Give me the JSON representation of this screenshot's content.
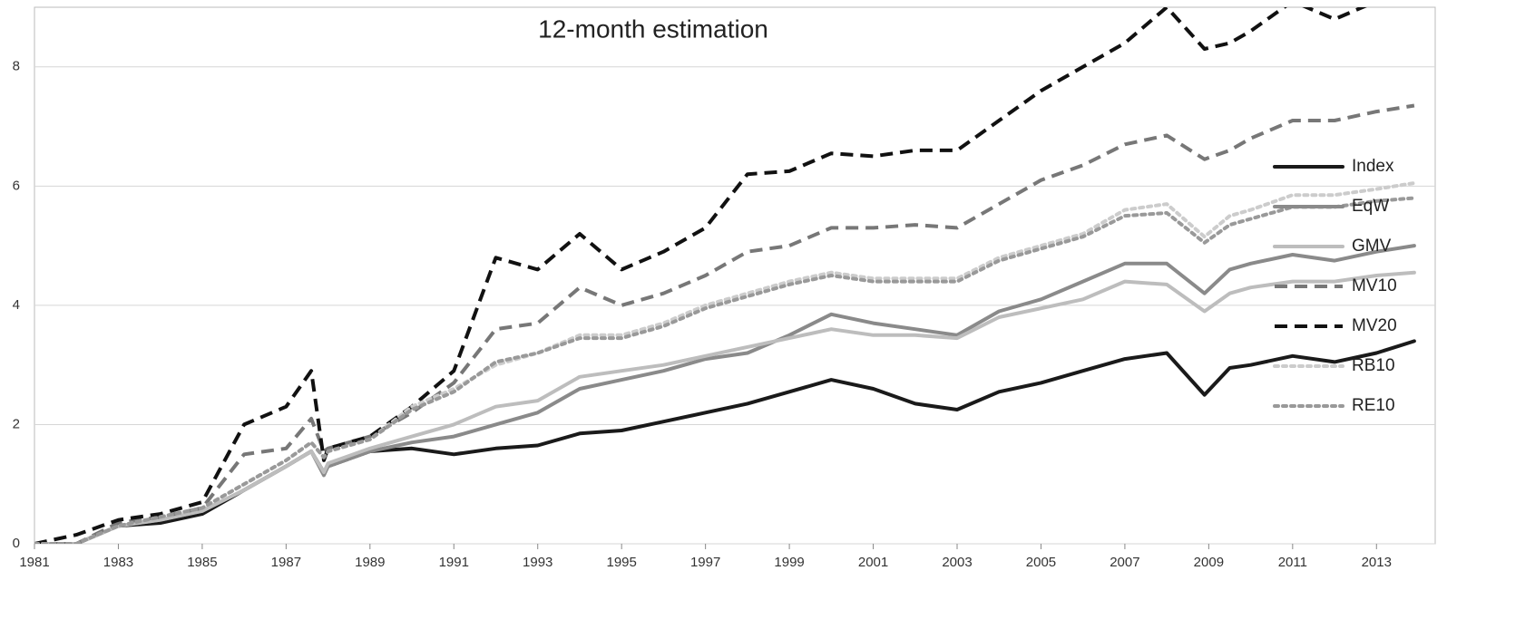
{
  "chart_data": {
    "type": "line",
    "title": "12-month estimation",
    "x": [
      1981,
      1982,
      1983,
      1984,
      1985,
      1986,
      1987,
      1987.6,
      1987.9,
      1988,
      1989,
      1990,
      1991,
      1992,
      1993,
      1994,
      1995,
      1996,
      1997,
      1998,
      1999,
      2000,
      2001,
      2002,
      2003,
      2004,
      2005,
      2006,
      2007,
      2008,
      2008.9,
      2009.5,
      2010,
      2011,
      2012,
      2013,
      2013.9
    ],
    "series": [
      {
        "name": "Index",
        "color": "#1a1a1a",
        "style": "solid",
        "values": [
          0,
          0,
          0.3,
          0.35,
          0.5,
          0.9,
          1.3,
          1.55,
          1.2,
          1.3,
          1.55,
          1.6,
          1.5,
          1.6,
          1.65,
          1.85,
          1.9,
          2.05,
          2.2,
          2.35,
          2.55,
          2.75,
          2.6,
          2.35,
          2.25,
          2.55,
          2.7,
          2.9,
          3.1,
          3.2,
          2.5,
          2.95,
          3.0,
          3.15,
          3.05,
          3.2,
          3.4
        ]
      },
      {
        "name": "EqW",
        "color": "#8a8a8a",
        "style": "solid",
        "values": [
          0,
          0,
          0.3,
          0.4,
          0.55,
          0.9,
          1.3,
          1.55,
          1.15,
          1.3,
          1.55,
          1.7,
          1.8,
          2.0,
          2.2,
          2.6,
          2.75,
          2.9,
          3.1,
          3.2,
          3.5,
          3.85,
          3.7,
          3.6,
          3.5,
          3.9,
          4.1,
          4.4,
          4.7,
          4.7,
          4.2,
          4.6,
          4.7,
          4.85,
          4.75,
          4.9,
          5.0
        ]
      },
      {
        "name": "GMV",
        "color": "#bdbdbd",
        "style": "solid",
        "values": [
          0,
          0,
          0.3,
          0.4,
          0.55,
          0.9,
          1.3,
          1.55,
          1.2,
          1.35,
          1.6,
          1.8,
          2.0,
          2.3,
          2.4,
          2.8,
          2.9,
          3.0,
          3.15,
          3.3,
          3.45,
          3.6,
          3.5,
          3.5,
          3.45,
          3.8,
          3.95,
          4.1,
          4.4,
          4.35,
          3.9,
          4.2,
          4.3,
          4.4,
          4.4,
          4.5,
          4.55
        ]
      },
      {
        "name": "MV10",
        "color": "#777777",
        "style": "dashed",
        "values": [
          0,
          0,
          0.35,
          0.45,
          0.6,
          1.5,
          1.6,
          2.1,
          1.55,
          1.6,
          1.8,
          2.2,
          2.7,
          3.6,
          3.7,
          4.3,
          4.0,
          4.2,
          4.5,
          4.9,
          5.0,
          5.3,
          5.3,
          5.35,
          5.3,
          5.7,
          6.1,
          6.35,
          6.7,
          6.85,
          6.45,
          6.6,
          6.8,
          7.1,
          7.1,
          7.25,
          7.35
        ]
      },
      {
        "name": "MV20",
        "color": "#111111",
        "style": "dashed",
        "values": [
          0,
          0.15,
          0.4,
          0.5,
          0.7,
          2.0,
          2.3,
          2.9,
          1.4,
          1.6,
          1.8,
          2.3,
          2.9,
          4.8,
          4.6,
          5.2,
          4.6,
          4.9,
          5.3,
          6.2,
          6.25,
          6.55,
          6.5,
          6.6,
          6.6,
          7.1,
          7.6,
          8.0,
          8.4,
          9.0,
          8.3,
          8.4,
          8.6,
          9.1,
          8.8,
          9.1,
          9.1
        ]
      },
      {
        "name": "RB10",
        "color": "#cccccc",
        "style": "dotted",
        "values": [
          0,
          0,
          0.3,
          0.45,
          0.6,
          1.0,
          1.4,
          1.7,
          1.45,
          1.55,
          1.75,
          2.3,
          2.6,
          3.0,
          3.2,
          3.5,
          3.5,
          3.7,
          4.0,
          4.2,
          4.4,
          4.55,
          4.45,
          4.45,
          4.45,
          4.8,
          5.0,
          5.2,
          5.6,
          5.7,
          5.15,
          5.5,
          5.6,
          5.85,
          5.85,
          5.95,
          6.05
        ]
      },
      {
        "name": "RE10",
        "color": "#999999",
        "style": "dotted",
        "values": [
          0,
          0,
          0.3,
          0.45,
          0.6,
          1.0,
          1.4,
          1.7,
          1.45,
          1.55,
          1.75,
          2.25,
          2.55,
          3.05,
          3.2,
          3.45,
          3.45,
          3.65,
          3.95,
          4.15,
          4.35,
          4.5,
          4.4,
          4.4,
          4.4,
          4.75,
          4.95,
          5.15,
          5.5,
          5.55,
          5.05,
          5.35,
          5.45,
          5.65,
          5.65,
          5.75,
          5.8
        ]
      }
    ],
    "xlim": [
      1981,
      2014.4
    ],
    "xticks": [
      1981,
      1983,
      1985,
      1987,
      1989,
      1991,
      1993,
      1995,
      1997,
      1999,
      2001,
      2003,
      2005,
      2007,
      2009,
      2011,
      2013
    ],
    "ylim": [
      0,
      9
    ],
    "yticks": [
      0,
      2,
      4,
      6,
      8
    ],
    "grid": true,
    "legend": "right"
  }
}
